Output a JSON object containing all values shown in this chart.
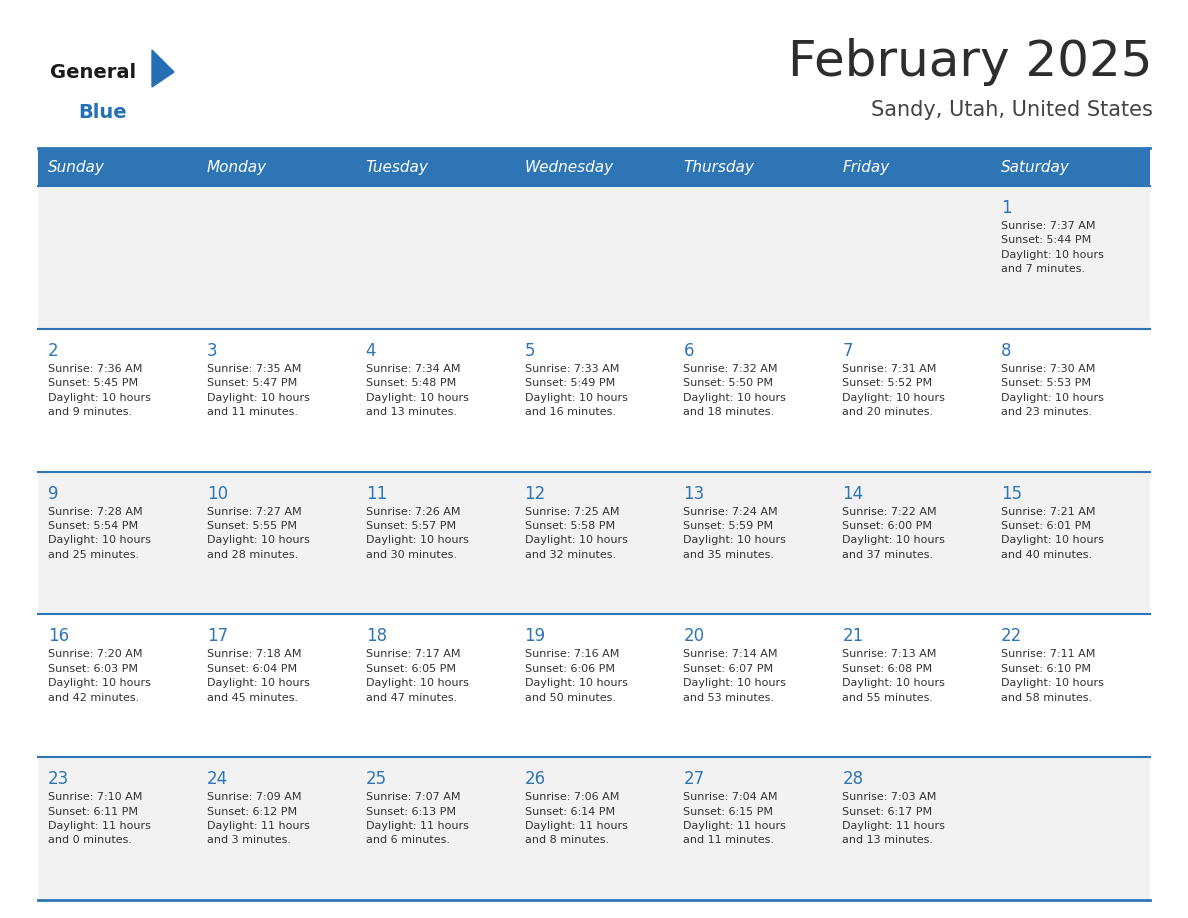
{
  "title": "February 2025",
  "subtitle": "Sandy, Utah, United States",
  "header_bg": "#2E75B6",
  "header_text": "#FFFFFF",
  "cell_bg_row0": "#F2F2F2",
  "cell_bg_row1": "#FFFFFF",
  "cell_bg_row2": "#F2F2F2",
  "cell_bg_row3": "#FFFFFF",
  "cell_bg_row4": "#F2F2F2",
  "row_line_color": "#2E75B6",
  "days_of_week": [
    "Sunday",
    "Monday",
    "Tuesday",
    "Wednesday",
    "Thursday",
    "Friday",
    "Saturday"
  ],
  "calendar": [
    [
      {
        "day": "",
        "info": ""
      },
      {
        "day": "",
        "info": ""
      },
      {
        "day": "",
        "info": ""
      },
      {
        "day": "",
        "info": ""
      },
      {
        "day": "",
        "info": ""
      },
      {
        "day": "",
        "info": ""
      },
      {
        "day": "1",
        "info": "Sunrise: 7:37 AM\nSunset: 5:44 PM\nDaylight: 10 hours\nand 7 minutes."
      }
    ],
    [
      {
        "day": "2",
        "info": "Sunrise: 7:36 AM\nSunset: 5:45 PM\nDaylight: 10 hours\nand 9 minutes."
      },
      {
        "day": "3",
        "info": "Sunrise: 7:35 AM\nSunset: 5:47 PM\nDaylight: 10 hours\nand 11 minutes."
      },
      {
        "day": "4",
        "info": "Sunrise: 7:34 AM\nSunset: 5:48 PM\nDaylight: 10 hours\nand 13 minutes."
      },
      {
        "day": "5",
        "info": "Sunrise: 7:33 AM\nSunset: 5:49 PM\nDaylight: 10 hours\nand 16 minutes."
      },
      {
        "day": "6",
        "info": "Sunrise: 7:32 AM\nSunset: 5:50 PM\nDaylight: 10 hours\nand 18 minutes."
      },
      {
        "day": "7",
        "info": "Sunrise: 7:31 AM\nSunset: 5:52 PM\nDaylight: 10 hours\nand 20 minutes."
      },
      {
        "day": "8",
        "info": "Sunrise: 7:30 AM\nSunset: 5:53 PM\nDaylight: 10 hours\nand 23 minutes."
      }
    ],
    [
      {
        "day": "9",
        "info": "Sunrise: 7:28 AM\nSunset: 5:54 PM\nDaylight: 10 hours\nand 25 minutes."
      },
      {
        "day": "10",
        "info": "Sunrise: 7:27 AM\nSunset: 5:55 PM\nDaylight: 10 hours\nand 28 minutes."
      },
      {
        "day": "11",
        "info": "Sunrise: 7:26 AM\nSunset: 5:57 PM\nDaylight: 10 hours\nand 30 minutes."
      },
      {
        "day": "12",
        "info": "Sunrise: 7:25 AM\nSunset: 5:58 PM\nDaylight: 10 hours\nand 32 minutes."
      },
      {
        "day": "13",
        "info": "Sunrise: 7:24 AM\nSunset: 5:59 PM\nDaylight: 10 hours\nand 35 minutes."
      },
      {
        "day": "14",
        "info": "Sunrise: 7:22 AM\nSunset: 6:00 PM\nDaylight: 10 hours\nand 37 minutes."
      },
      {
        "day": "15",
        "info": "Sunrise: 7:21 AM\nSunset: 6:01 PM\nDaylight: 10 hours\nand 40 minutes."
      }
    ],
    [
      {
        "day": "16",
        "info": "Sunrise: 7:20 AM\nSunset: 6:03 PM\nDaylight: 10 hours\nand 42 minutes."
      },
      {
        "day": "17",
        "info": "Sunrise: 7:18 AM\nSunset: 6:04 PM\nDaylight: 10 hours\nand 45 minutes."
      },
      {
        "day": "18",
        "info": "Sunrise: 7:17 AM\nSunset: 6:05 PM\nDaylight: 10 hours\nand 47 minutes."
      },
      {
        "day": "19",
        "info": "Sunrise: 7:16 AM\nSunset: 6:06 PM\nDaylight: 10 hours\nand 50 minutes."
      },
      {
        "day": "20",
        "info": "Sunrise: 7:14 AM\nSunset: 6:07 PM\nDaylight: 10 hours\nand 53 minutes."
      },
      {
        "day": "21",
        "info": "Sunrise: 7:13 AM\nSunset: 6:08 PM\nDaylight: 10 hours\nand 55 minutes."
      },
      {
        "day": "22",
        "info": "Sunrise: 7:11 AM\nSunset: 6:10 PM\nDaylight: 10 hours\nand 58 minutes."
      }
    ],
    [
      {
        "day": "23",
        "info": "Sunrise: 7:10 AM\nSunset: 6:11 PM\nDaylight: 11 hours\nand 0 minutes."
      },
      {
        "day": "24",
        "info": "Sunrise: 7:09 AM\nSunset: 6:12 PM\nDaylight: 11 hours\nand 3 minutes."
      },
      {
        "day": "25",
        "info": "Sunrise: 7:07 AM\nSunset: 6:13 PM\nDaylight: 11 hours\nand 6 minutes."
      },
      {
        "day": "26",
        "info": "Sunrise: 7:06 AM\nSunset: 6:14 PM\nDaylight: 11 hours\nand 8 minutes."
      },
      {
        "day": "27",
        "info": "Sunrise: 7:04 AM\nSunset: 6:15 PM\nDaylight: 11 hours\nand 11 minutes."
      },
      {
        "day": "28",
        "info": "Sunrise: 7:03 AM\nSunset: 6:17 PM\nDaylight: 11 hours\nand 13 minutes."
      },
      {
        "day": "",
        "info": ""
      }
    ]
  ],
  "logo_general_color": "#1a1a1a",
  "logo_blue_color": "#2570B5",
  "title_color": "#2d2d2d",
  "subtitle_color": "#444444",
  "day_number_color": "#2E75B6",
  "info_text_color": "#333333",
  "fig_width": 11.88,
  "fig_height": 9.18,
  "dpi": 100
}
